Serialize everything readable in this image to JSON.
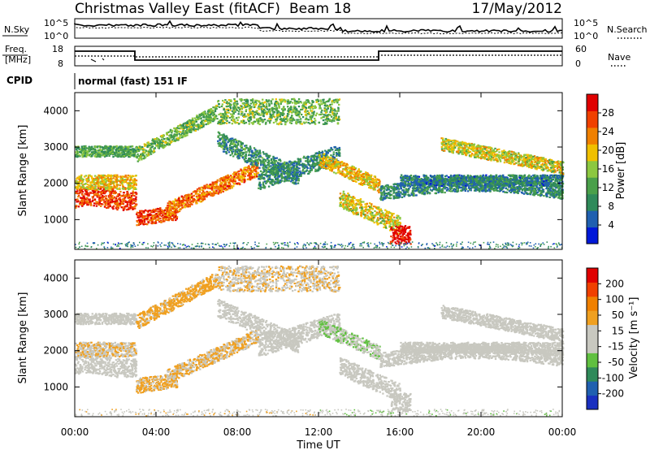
{
  "header": {
    "radar_title": "Christmas Valley East (fitACF)",
    "beam": "Beam 18",
    "date": "17/May/2012"
  },
  "status_panels": {
    "nsky_label": "N.Sky",
    "nsearch_label": "N.Search",
    "noise_tick_top": "10^5",
    "noise_tick_bottom": "10^0",
    "freq_label_line1": "Freq.",
    "freq_label_line2": "[MHz]",
    "freq_tick_top": "18",
    "freq_tick_bottom": "8",
    "nave_label": "Nave",
    "nave_tick_top": "60",
    "nave_tick_bottom": "0",
    "cpid_label": "CPID",
    "cpid_value": "normal (fast) 151 IF"
  },
  "colors": {
    "power_scale": [
      "#0018d8",
      "#2060b0",
      "#2f8a5a",
      "#4aa04a",
      "#8cc840",
      "#f0c000",
      "#f08000",
      "#f04000",
      "#e00000"
    ],
    "velocity_scale": [
      "#e00000",
      "#f04000",
      "#f08000",
      "#f0a020",
      "#c8c8c0",
      "#c8c8c0",
      "#60c040",
      "#2f8a5a",
      "#2060b0",
      "#1a30c0"
    ]
  },
  "chart_data": [
    {
      "type": "heatmap",
      "panel": "power",
      "ylabel": "Slant Range [km]",
      "yticks": [
        "1000",
        "2000",
        "3000",
        "4000"
      ],
      "ylim": [
        180,
        4500
      ],
      "xlim": [
        0,
        24
      ],
      "colorbar_label": "Power [dB]",
      "colorbar_ticks": [
        "4",
        "8",
        "12",
        "16",
        "20",
        "24",
        "28"
      ],
      "colorbar_range": [
        0,
        32
      ]
    },
    {
      "type": "heatmap",
      "panel": "velocity",
      "ylabel": "Slant Range [km]",
      "yticks": [
        "1000",
        "2000",
        "3000",
        "4000"
      ],
      "ylim": [
        180,
        4500
      ],
      "xlim": [
        0,
        24
      ],
      "colorbar_label": "Velocity [m s⁻¹]",
      "colorbar_ticks": [
        "200",
        "100",
        "50",
        "15",
        "-15",
        "-50",
        "-100",
        "-200"
      ],
      "colorbar_range": [
        -250,
        250
      ],
      "xlabel": "Time UT",
      "xticks": [
        "00:00",
        "04:00",
        "08:00",
        "12:00",
        "16:00",
        "20:00",
        "00:00"
      ]
    }
  ]
}
